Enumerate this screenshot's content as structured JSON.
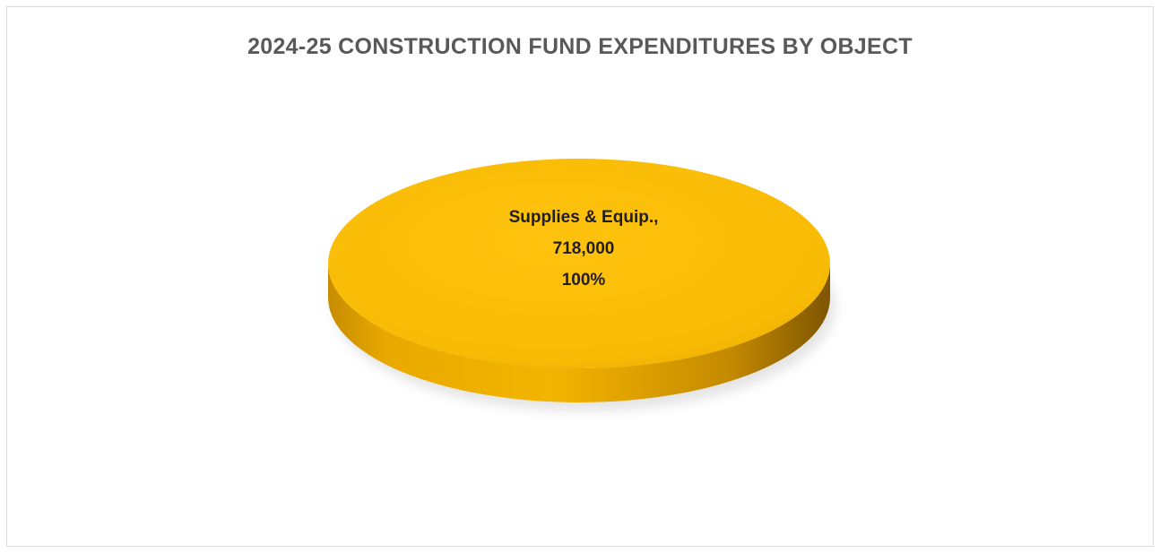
{
  "chart_data": {
    "type": "pie",
    "style": "3d",
    "title": "2024-25 CONSTRUCTION FUND EXPENDITURES BY OBJECT",
    "slices": [
      {
        "category": "Supplies & Equip.",
        "label": "Supplies & Equip.,",
        "value": 718000,
        "value_label": "718,000",
        "percent": 100,
        "percent_label": "100%",
        "color": "#FFC000"
      }
    ],
    "legend": "none"
  },
  "colors": {
    "slice_top": "#F7BD0A",
    "slice_side_light": "#F0B300",
    "slice_side_dark": "#8C6000",
    "title": "#595959"
  }
}
